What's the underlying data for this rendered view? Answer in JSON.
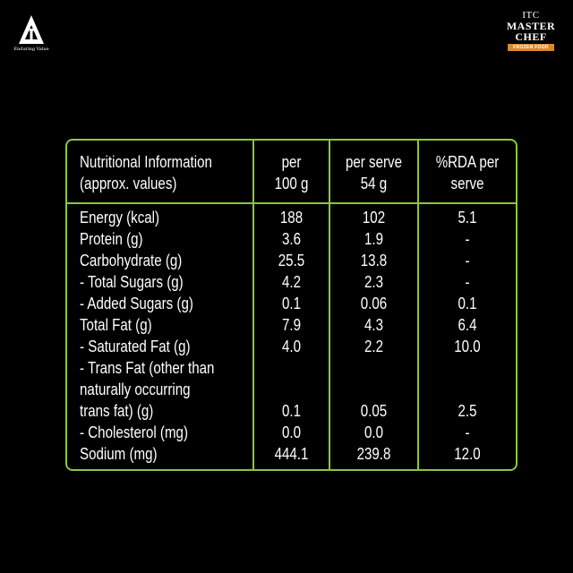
{
  "logo": {
    "name": "itc-logo-icon",
    "tagline": "Enduring Value"
  },
  "brand": {
    "line1": "ITC",
    "line2": "MASTER",
    "line3": "CHEF",
    "sub": "FROZEN FOOD"
  },
  "table": {
    "headers": [
      "Nutritional Information\n(approx. values)",
      "per\n100 g",
      "per serve\n54 g",
      "%RDA per\nserve"
    ],
    "rows": [
      {
        "name": "Energy (kcal)",
        "per100": "188",
        "perServe": "102",
        "rda": "5.1"
      },
      {
        "name": "Protein (g)",
        "per100": "3.6",
        "perServe": "1.9",
        "rda": "-"
      },
      {
        "name": "Carbohydrate (g)",
        "per100": "25.5",
        "perServe": "13.8",
        "rda": "-"
      },
      {
        "name": "- Total Sugars (g)",
        "per100": "4.2",
        "perServe": "2.3",
        "rda": "-"
      },
      {
        "name": "- Added Sugars (g)",
        "per100": "0.1",
        "perServe": "0.06",
        "rda": "0.1"
      },
      {
        "name": "Total Fat (g)",
        "per100": "7.9",
        "perServe": "4.3",
        "rda": "6.4"
      },
      {
        "name": "- Saturated Fat (g)",
        "per100": "4.0",
        "perServe": "2.2",
        "rda": "10.0"
      },
      {
        "name": "- Trans Fat (other than",
        "per100": "",
        "perServe": "",
        "rda": ""
      },
      {
        "name": "naturally occurring",
        "per100": "",
        "perServe": "",
        "rda": ""
      },
      {
        "name": "trans fat) (g)",
        "per100": "0.1",
        "perServe": "0.05",
        "rda": "2.5"
      },
      {
        "name": "- Cholesterol (mg)",
        "per100": "0.0",
        "perServe": "0.0",
        "rda": "-"
      },
      {
        "name": "Sodium (mg)",
        "per100": "444.1",
        "perServe": "239.8",
        "rda": "12.0"
      }
    ]
  },
  "colors": {
    "border": "#8cc63f",
    "background": "#000000",
    "text": "#ffffff",
    "brandAccent": "#d9892b"
  }
}
